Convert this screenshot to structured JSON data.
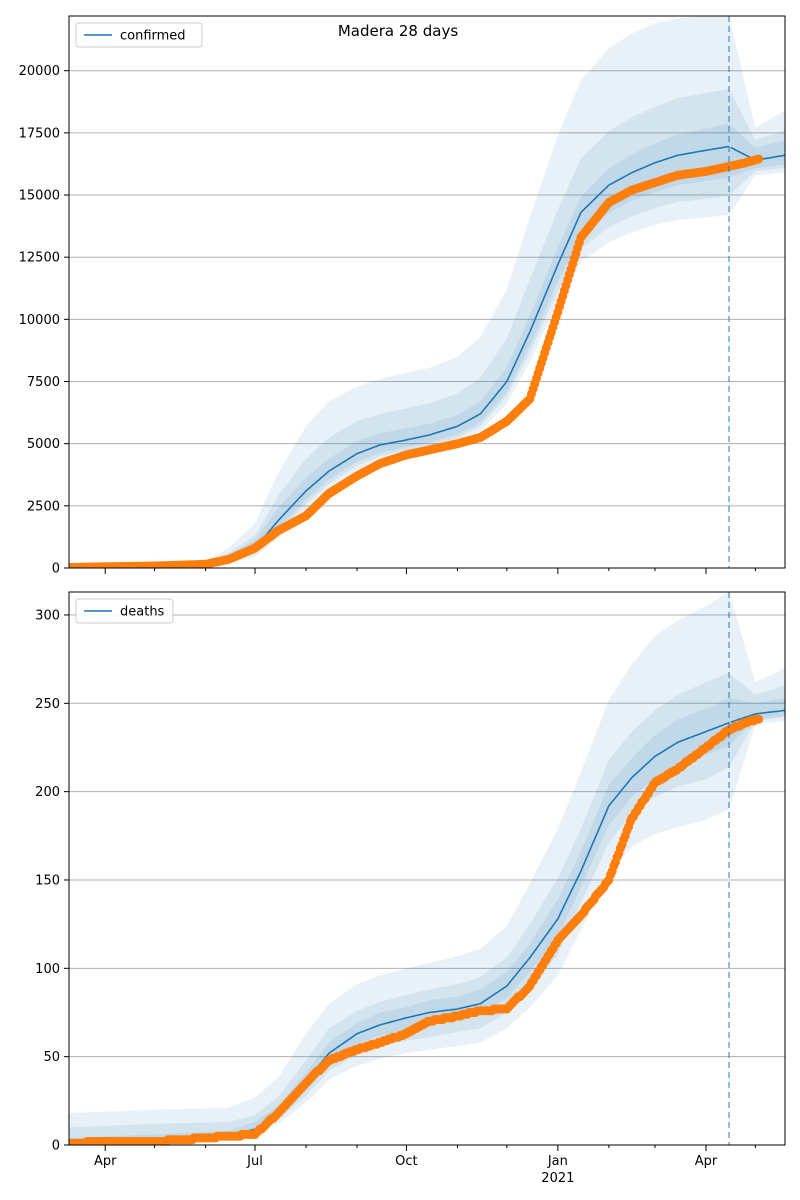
{
  "chart_data": {
    "title": "Madera 28 days",
    "type": "line",
    "x_axis": {
      "type": "date",
      "range": [
        "2020-03-10",
        "2021-05-19"
      ],
      "major_ticks": [
        {
          "date": "2020-04-01",
          "label": "Apr",
          "sublabel": ""
        },
        {
          "date": "2020-07-01",
          "label": "Jul",
          "sublabel": ""
        },
        {
          "date": "2020-10-01",
          "label": "Oct",
          "sublabel": ""
        },
        {
          "date": "2021-01-01",
          "label": "Jan",
          "sublabel": "2021"
        },
        {
          "date": "2021-04-01",
          "label": "Apr",
          "sublabel": ""
        }
      ],
      "minor_ticks": [
        "2020-05-01",
        "2020-06-01",
        "2020-08-01",
        "2020-09-01",
        "2020-11-01",
        "2020-12-01",
        "2021-02-01",
        "2021-03-01",
        "2021-05-01"
      ]
    },
    "forecast_start": "2021-04-15",
    "colors": {
      "model_line": "#1f77b4",
      "observed": "#ff7f0e",
      "band": "#1f77b4",
      "forecast_line": "#1f77b4",
      "grid": "#b0b0b0"
    },
    "panels": [
      {
        "legend": "confirmed",
        "ylim": [
          0,
          22200
        ],
        "yticks": [
          0,
          2500,
          5000,
          7500,
          10000,
          12500,
          15000,
          17500,
          20000
        ],
        "grid": true,
        "legend_position": "upper left",
        "model": {
          "x": [
            "2020-03-10",
            "2020-06-01",
            "2020-06-15",
            "2020-07-01",
            "2020-07-15",
            "2020-08-01",
            "2020-08-15",
            "2020-09-01",
            "2020-09-15",
            "2020-10-01",
            "2020-10-15",
            "2020-11-01",
            "2020-11-15",
            "2020-12-01",
            "2020-12-15",
            "2021-01-01",
            "2021-01-15",
            "2021-02-01",
            "2021-02-15",
            "2021-03-01",
            "2021-03-15",
            "2021-04-01",
            "2021-04-15",
            "2021-05-01",
            "2021-05-19"
          ],
          "y": [
            0,
            150,
            400,
            800,
            1900,
            3100,
            3900,
            4600,
            4950,
            5150,
            5350,
            5700,
            6200,
            7500,
            9500,
            12200,
            14300,
            15400,
            15900,
            16300,
            16600,
            16800,
            16950,
            16400,
            16600
          ],
          "bands": [
            {
              "lower": [
                0,
                70,
                200,
                450,
                1200,
                2300,
                3100,
                3900,
                4300,
                4550,
                4750,
                5050,
                5500,
                6600,
                8300,
                10700,
                12300,
                13100,
                13500,
                13800,
                14000,
                14100,
                14200,
                15800,
                15900
              ],
              "upper": [
                0,
                280,
                800,
                1800,
                3800,
                5700,
                6700,
                7300,
                7600,
                7850,
                8050,
                8500,
                9300,
                11200,
                14100,
                17400,
                19600,
                20900,
                21500,
                21900,
                22100,
                22200,
                22200,
                17700,
                18400
              ]
            },
            {
              "lower": [
                0,
                100,
                260,
                560,
                1440,
                2580,
                3380,
                4120,
                4500,
                4730,
                4920,
                5240,
                5710,
                6890,
                8660,
                11150,
                12840,
                13710,
                14150,
                14480,
                14720,
                14850,
                14970,
                15960,
                16090
              ],
              "upper": [
                0,
                220,
                600,
                1300,
                2900,
                4400,
                5250,
                5900,
                6200,
                6420,
                6630,
                7020,
                7660,
                9230,
                11610,
                14410,
                16470,
                17570,
                18130,
                18540,
                18900,
                19100,
                19280,
                17210,
                17600
              ]
            },
            {
              "lower": [
                0,
                115,
                300,
                630,
                1580,
                2750,
                3560,
                4280,
                4640,
                4860,
                5050,
                5380,
                5860,
                7080,
                8920,
                11520,
                13310,
                14280,
                14760,
                15120,
                15400,
                15560,
                15700,
                16070,
                16230
              ],
              "upper": [
                0,
                190,
                530,
                1120,
                2400,
                3650,
                4400,
                5100,
                5420,
                5620,
                5800,
                6160,
                6710,
                8070,
                10150,
                12910,
                14930,
                16080,
                16640,
                17080,
                17430,
                17680,
                17880,
                16900,
                17200
              ]
            }
          ]
        },
        "observed": {
          "x": [
            "2020-03-10",
            "2020-04-01",
            "2020-05-01",
            "2020-06-01",
            "2020-06-15",
            "2020-07-01",
            "2020-07-15",
            "2020-08-01",
            "2020-08-15",
            "2020-09-01",
            "2020-09-15",
            "2020-10-01",
            "2020-10-15",
            "2020-11-01",
            "2020-11-15",
            "2020-12-01",
            "2020-12-15",
            "2021-01-01",
            "2021-01-15",
            "2021-02-01",
            "2021-02-15",
            "2021-03-01",
            "2021-03-15",
            "2021-04-01",
            "2021-04-15",
            "2021-04-25",
            "2021-05-03"
          ],
          "y": [
            20,
            50,
            80,
            150,
            350,
            800,
            1500,
            2100,
            3000,
            3700,
            4200,
            4550,
            4750,
            5000,
            5250,
            5900,
            6800,
            10300,
            13300,
            14700,
            15200,
            15500,
            15800,
            15950,
            16150,
            16300,
            16450
          ]
        }
      },
      {
        "legend": "deaths",
        "ylim": [
          0,
          313
        ],
        "yticks": [
          0,
          50,
          100,
          150,
          200,
          250,
          300
        ],
        "grid": true,
        "legend_position": "upper left",
        "model": {
          "x": [
            "2020-03-10",
            "2020-05-01",
            "2020-06-15",
            "2020-07-01",
            "2020-07-15",
            "2020-08-01",
            "2020-08-15",
            "2020-09-01",
            "2020-09-15",
            "2020-10-01",
            "2020-10-15",
            "2020-11-01",
            "2020-11-15",
            "2020-12-01",
            "2020-12-15",
            "2021-01-01",
            "2021-01-15",
            "2021-02-01",
            "2021-02-15",
            "2021-03-01",
            "2021-03-15",
            "2021-04-01",
            "2021-04-15",
            "2021-05-01",
            "2021-05-19"
          ],
          "y": [
            1,
            3,
            5,
            9,
            18,
            36,
            52,
            63,
            68,
            72,
            75,
            77,
            80,
            90,
            106,
            128,
            155,
            192,
            208,
            220,
            228,
            234,
            239,
            244,
            246
          ],
          "bands": [
            {
              "lower": [
                0,
                1,
                3,
                6,
                12,
                24,
                37,
                45,
                49,
                52,
                54,
                56,
                58,
                66,
                78,
                96,
                122,
                152,
                169,
                176,
                180,
                184,
                190,
                238,
                240
              ],
              "upper": [
                18,
                20,
                21,
                27,
                38,
                63,
                80,
                91,
                96,
                100,
                103,
                107,
                111,
                124,
                148,
                179,
                211,
                252,
                272,
                288,
                297,
                305,
                313,
                262,
                270
              ]
            },
            {
              "lower": [
                0,
                1,
                3,
                7,
                14,
                28,
                42,
                51,
                56,
                59,
                61,
                64,
                66,
                75,
                88,
                108,
                137,
                171,
                188,
                197,
                203,
                207,
                214,
                240,
                242
              ],
              "upper": [
                10,
                12,
                13,
                17,
                27,
                48,
                66,
                76,
                81,
                85,
                88,
                91,
                95,
                106,
                125,
                151,
                179,
                218,
                234,
                246,
                255,
                262,
                267,
                255,
                260
              ]
            },
            {
              "lower": [
                1,
                2,
                4,
                8,
                16,
                32,
                47,
                57,
                62,
                65,
                68,
                71,
                74,
                83,
                98,
                118,
                146,
                181,
                197,
                208,
                215,
                221,
                226,
                241,
                243
              ],
              "upper": [
                4,
                6,
                8,
                13,
                22,
                41,
                58,
                69,
                75,
                78,
                82,
                84,
                88,
                98,
                114,
                139,
                166,
                204,
                219,
                232,
                241,
                247,
                253,
                250,
                253
              ]
            }
          ]
        },
        "observed": {
          "x": [
            "2020-03-10",
            "2020-04-01",
            "2020-05-01",
            "2020-06-01",
            "2020-06-15",
            "2020-07-01",
            "2020-07-15",
            "2020-08-01",
            "2020-08-15",
            "2020-09-01",
            "2020-09-15",
            "2020-10-01",
            "2020-10-15",
            "2020-11-01",
            "2020-11-15",
            "2020-12-01",
            "2020-12-15",
            "2021-01-01",
            "2021-01-15",
            "2021-02-01",
            "2021-02-15",
            "2021-03-01",
            "2021-03-15",
            "2021-04-01",
            "2021-04-15",
            "2021-04-25",
            "2021-05-03"
          ],
          "y": [
            1,
            2,
            2,
            4,
            5,
            6,
            18,
            35,
            48,
            54,
            58,
            63,
            70,
            73,
            76,
            77,
            90,
            116,
            130,
            150,
            185,
            205,
            213,
            225,
            235,
            239,
            241
          ]
        }
      }
    ]
  }
}
